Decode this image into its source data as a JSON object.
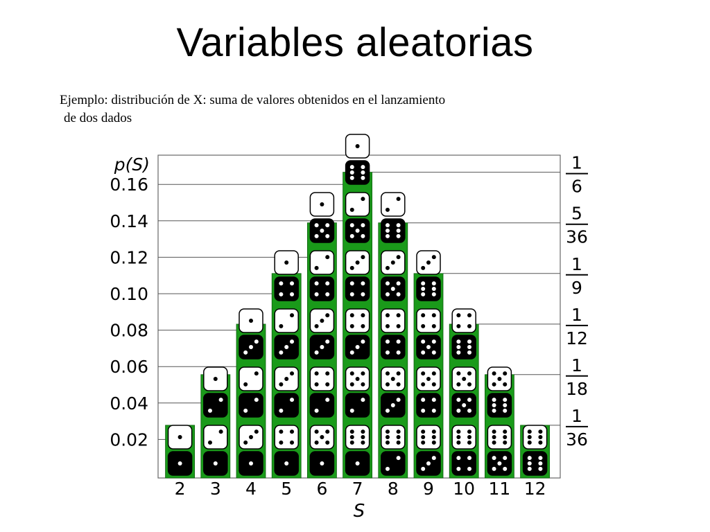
{
  "slide": {
    "title": "Variables aleatorias",
    "description_line1": "Ejemplo: distribución de X: suma de valores obtenidos en el lanzamiento",
    "description_line2": "de dos dados"
  },
  "colors": {
    "bar": "#1a9a1a",
    "die_dark": "#000000",
    "die_light": "#ffffff",
    "grid": "#555555"
  },
  "chart_data": {
    "type": "bar",
    "ylabel": "p(S)",
    "xlabel": "S",
    "categories": [
      "2",
      "3",
      "4",
      "5",
      "6",
      "7",
      "8",
      "9",
      "10",
      "11",
      "12"
    ],
    "values": [
      0.0278,
      0.0556,
      0.0833,
      0.1111,
      0.1389,
      0.1667,
      0.1389,
      0.1111,
      0.0833,
      0.0556,
      0.0278
    ],
    "y_ticks": [
      "0.02",
      "0.04",
      "0.06",
      "0.08",
      "0.10",
      "0.12",
      "0.14",
      "0.16"
    ],
    "y_tick_values": [
      0.02,
      0.04,
      0.06,
      0.08,
      0.1,
      0.12,
      0.14,
      0.16
    ],
    "ylim": [
      0,
      0.175
    ],
    "fraction_labels": [
      {
        "num": "1",
        "den": "6",
        "value": 0.1667
      },
      {
        "num": "5",
        "den": "36",
        "value": 0.1389
      },
      {
        "num": "1",
        "den": "9",
        "value": 0.1111
      },
      {
        "num": "1",
        "den": "12",
        "value": 0.0833
      },
      {
        "num": "1",
        "den": "18",
        "value": 0.0556
      },
      {
        "num": "1",
        "den": "36",
        "value": 0.0278
      }
    ],
    "dice_pairs": {
      "2": [
        [
          1,
          1
        ]
      ],
      "3": [
        [
          1,
          2
        ],
        [
          2,
          1
        ]
      ],
      "4": [
        [
          1,
          3
        ],
        [
          2,
          2
        ],
        [
          3,
          1
        ]
      ],
      "5": [
        [
          1,
          4
        ],
        [
          2,
          3
        ],
        [
          3,
          2
        ],
        [
          4,
          1
        ]
      ],
      "6": [
        [
          1,
          5
        ],
        [
          2,
          4
        ],
        [
          3,
          3
        ],
        [
          4,
          2
        ],
        [
          5,
          1
        ]
      ],
      "7": [
        [
          1,
          6
        ],
        [
          2,
          5
        ],
        [
          3,
          4
        ],
        [
          4,
          3
        ],
        [
          5,
          2
        ],
        [
          6,
          1
        ]
      ],
      "8": [
        [
          2,
          6
        ],
        [
          3,
          5
        ],
        [
          4,
          4
        ],
        [
          5,
          3
        ],
        [
          6,
          2
        ]
      ],
      "9": [
        [
          3,
          6
        ],
        [
          4,
          5
        ],
        [
          5,
          4
        ],
        [
          6,
          3
        ]
      ],
      "10": [
        [
          4,
          6
        ],
        [
          5,
          5
        ],
        [
          6,
          4
        ]
      ],
      "11": [
        [
          5,
          6
        ],
        [
          6,
          5
        ]
      ],
      "12": [
        [
          6,
          6
        ]
      ]
    },
    "legend": "none",
    "grid": false
  }
}
